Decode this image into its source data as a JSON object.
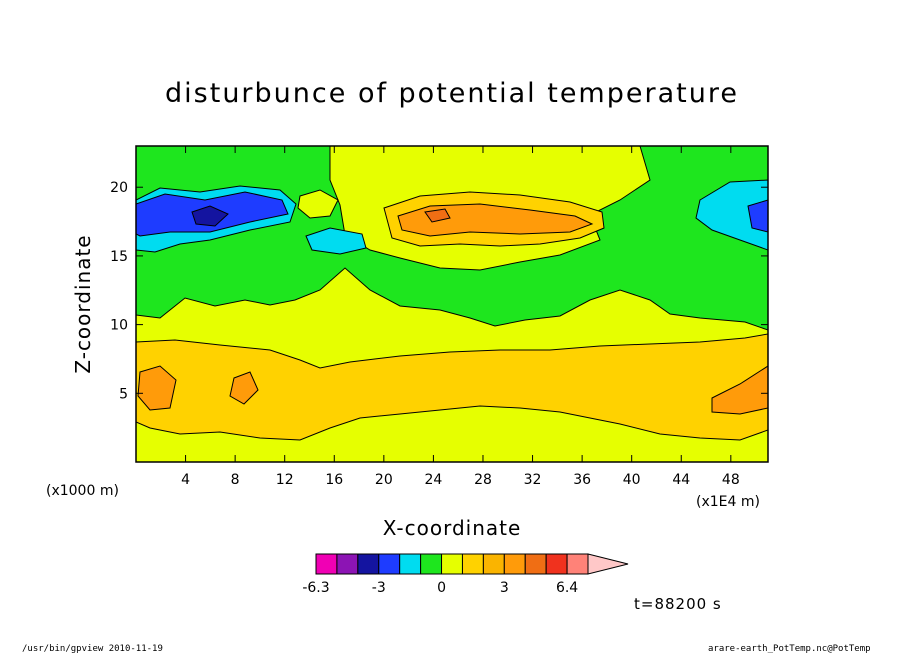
{
  "chart_data": {
    "type": "heatmap",
    "title": "disturbunce of potential temperature",
    "xlabel": "X-coordinate",
    "ylabel": "Z-coordinate",
    "x_unit": "(x1E4 m)",
    "y_unit": "(x1000 m)",
    "xlim": [
      0,
      51
    ],
    "ylim": [
      0,
      23
    ],
    "x_ticks": [
      4,
      8,
      12,
      16,
      20,
      24,
      28,
      32,
      36,
      40,
      44,
      48
    ],
    "y_ticks": [
      5,
      10,
      15,
      20
    ],
    "colorbar": {
      "colors": [
        "#f000b4",
        "#8c14b4",
        "#1414a0",
        "#1e3cff",
        "#00dcf0",
        "#1ee61e",
        "#e6ff00",
        "#ffd200",
        "#fab400",
        "#ff9b0a",
        "#f06e14",
        "#f0321e",
        "#ff8278",
        "#ffc8c8"
      ],
      "tick_labels": [
        "-6.3",
        "-3",
        "0",
        "3",
        "6.4"
      ]
    },
    "regions": [
      {
        "band": "z 0-2 (surface layer)",
        "level": 1,
        "color": "#e6ff00"
      },
      {
        "band": "z 2-9 (lower band)",
        "level": 2,
        "color": "#ffd200"
      },
      {
        "band": "z 9-12",
        "level": 1,
        "color": "#e6ff00"
      },
      {
        "band": "z 12-23 (upper layer)",
        "level": 0,
        "color": "#1ee61e"
      },
      {
        "band": "x 0-14, z 16-20",
        "level": -3,
        "color": "#1e3cff"
      },
      {
        "band": "x 21-38, z 15-20",
        "level": 3,
        "color": "#ff9b0a"
      }
    ],
    "time_label": "t=88200 s"
  },
  "footer": {
    "left": "/usr/bin/gpview   2010-11-19",
    "right": "arare-earth_PotTemp.nc@PotTemp"
  }
}
